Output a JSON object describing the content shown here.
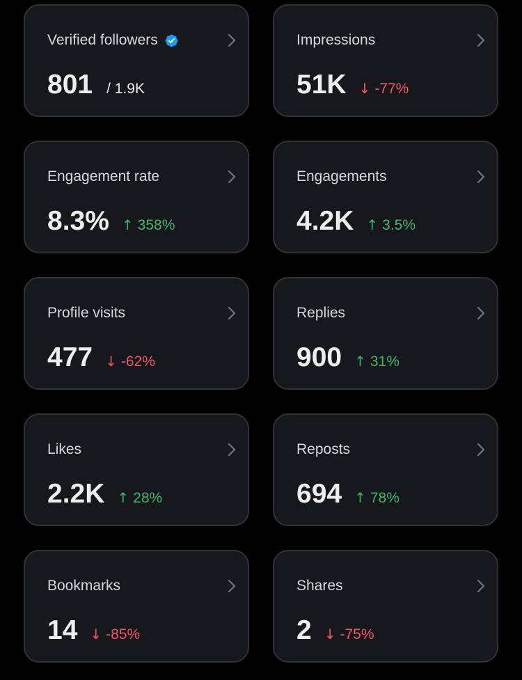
{
  "metrics": [
    {
      "label": "Verified followers",
      "value": "801",
      "suffix": "/ 1.9K",
      "verified": true
    },
    {
      "label": "Impressions",
      "value": "51K",
      "direction": "down",
      "arrow": "↓",
      "change": "-77%"
    },
    {
      "label": "Engagement rate",
      "value": "8.3%",
      "direction": "up",
      "arrow": "↑",
      "change": "358%"
    },
    {
      "label": "Engagements",
      "value": "4.2K",
      "direction": "up",
      "arrow": "↑",
      "change": "3.5%"
    },
    {
      "label": "Profile visits",
      "value": "477",
      "direction": "down",
      "arrow": "↓",
      "change": "-62%"
    },
    {
      "label": "Replies",
      "value": "900",
      "direction": "up",
      "arrow": "↑",
      "change": "31%"
    },
    {
      "label": "Likes",
      "value": "2.2K",
      "direction": "up",
      "arrow": "↑",
      "change": "28%"
    },
    {
      "label": "Reposts",
      "value": "694",
      "direction": "up",
      "arrow": "↑",
      "change": "78%"
    },
    {
      "label": "Bookmarks",
      "value": "14",
      "direction": "down",
      "arrow": "↓",
      "change": "-85%"
    },
    {
      "label": "Shares",
      "value": "2",
      "direction": "down",
      "arrow": "↓",
      "change": "-75%"
    }
  ],
  "icons": {
    "verified": "verified-badge-icon",
    "chevron": "chevron-right-icon"
  },
  "colors": {
    "background": "#000000",
    "card": "#16181c",
    "card_border": "#2f3336",
    "positive": "#3db66f",
    "negative": "#f0566a",
    "verified_badge": "#1d9bf0"
  }
}
